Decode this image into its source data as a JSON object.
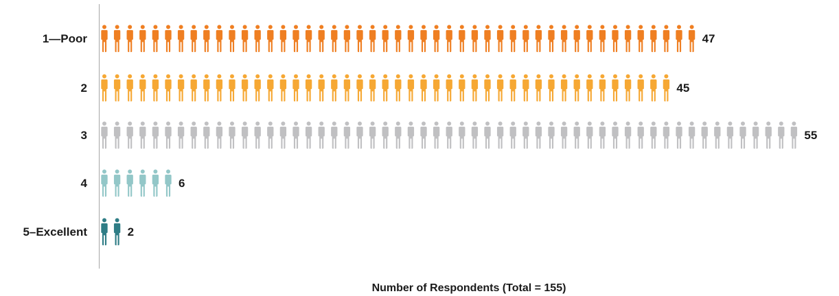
{
  "chart_data": {
    "type": "bar",
    "subtype": "pictograph",
    "orientation": "horizontal",
    "categories": [
      "1—Poor",
      "2",
      "3",
      "4",
      "5–Excellent"
    ],
    "values": [
      47,
      45,
      55,
      6,
      2
    ],
    "colors": [
      "#ef7f22",
      "#f6a834",
      "#c0c0c2",
      "#93c7c8",
      "#2f7d86"
    ],
    "xlabel": "Number of Respondents (Total = 155)",
    "icon": "person-icon",
    "units_per_icon": 1,
    "grid": false
  }
}
